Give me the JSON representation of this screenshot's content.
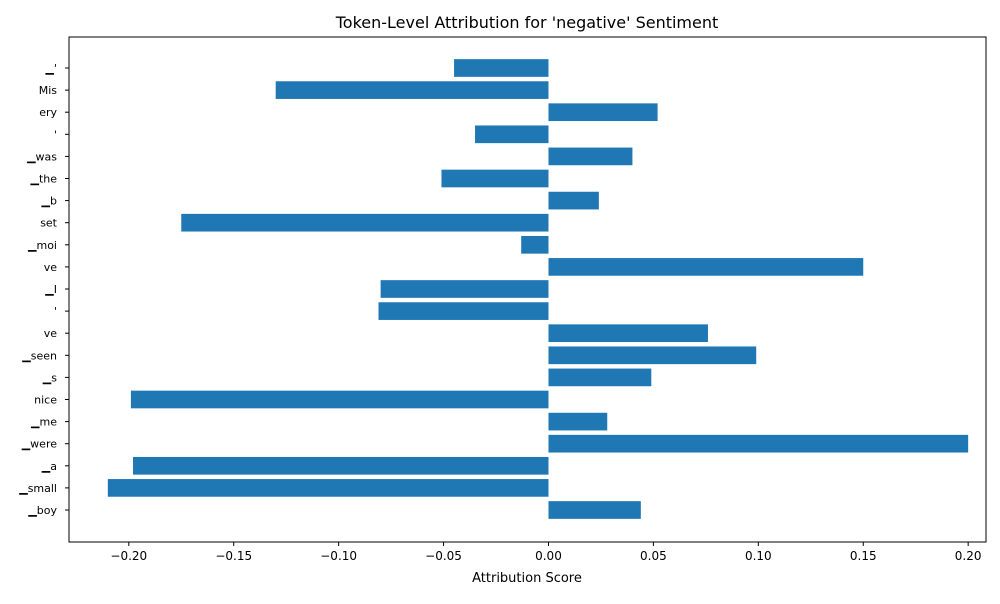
{
  "chart_data": {
    "type": "bar",
    "orientation": "horizontal",
    "title": "Token-Level Attribution for 'negative' Sentiment",
    "xlabel": "Attribution Score",
    "ylabel": "",
    "xlim": [
      -0.2285,
      0.2085
    ],
    "xticks": [
      -0.2,
      -0.15,
      -0.1,
      -0.05,
      0.0,
      0.05,
      0.1,
      0.15,
      0.2
    ],
    "xtick_labels": [
      "−0.20",
      "−0.15",
      "−0.10",
      "−0.05",
      "0.00",
      "0.05",
      "0.10",
      "0.15",
      "0.20"
    ],
    "grid": false,
    "bar_color": "#1f77b4",
    "categories": [
      "▁boy",
      "▁small",
      "▁a",
      "▁were",
      "▁me",
      "nice",
      "▁s",
      "▁seen",
      "ve",
      "'",
      "▁I",
      "ve",
      "▁moi",
      "set",
      "▁b",
      "▁the",
      "▁was",
      "'",
      "ery",
      "Mis",
      "▁'"
    ],
    "values": [
      0.044,
      -0.21,
      -0.198,
      0.2,
      0.028,
      -0.199,
      0.049,
      0.099,
      0.076,
      -0.081,
      -0.08,
      0.15,
      -0.013,
      -0.175,
      0.024,
      -0.051,
      0.04,
      -0.035,
      0.052,
      -0.13,
      -0.045
    ]
  }
}
